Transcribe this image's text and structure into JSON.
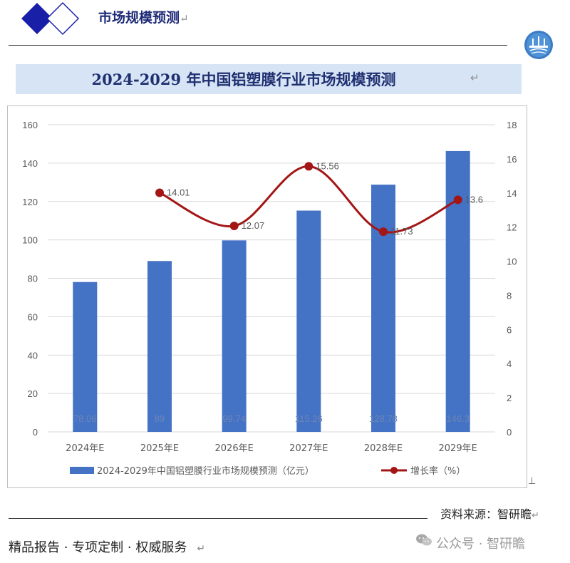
{
  "header": {
    "title": "市场规模预测",
    "para_mark": "↵"
  },
  "banner": {
    "title": "2024-2029 年中国铝塑膜行业市场规模预测",
    "para_mark": "↵"
  },
  "chart_data": {
    "type": "bar+line",
    "categories": [
      "2024年E",
      "2025年E",
      "2026年E",
      "2027年E",
      "2028年E",
      "2029年E"
    ],
    "series": [
      {
        "name": "2024-2029年中国铝塑膜行业市场规模预测（亿元）",
        "type": "bar",
        "axis": "left",
        "color": "#4472c4",
        "values": [
          78.06,
          89,
          99.74,
          115.26,
          128.78,
          146.3
        ],
        "labels": [
          "78.06",
          "89",
          "99.74",
          "115.26",
          "128.78",
          "146.3"
        ]
      },
      {
        "name": "增长率（%）",
        "type": "line",
        "axis": "right",
        "color": "#a31616",
        "values": [
          null,
          14.01,
          12.07,
          15.56,
          11.73,
          13.6
        ],
        "labels": [
          "",
          "14.01",
          "12.07",
          "15.56",
          "11.73",
          "13.6"
        ]
      }
    ],
    "y_left": {
      "min": 0,
      "max": 160,
      "step": 20,
      "ticks": [
        "0",
        "20",
        "40",
        "60",
        "80",
        "100",
        "120",
        "140",
        "160"
      ]
    },
    "y_right": {
      "min": 0,
      "max": 18,
      "step": 2,
      "ticks": [
        "0",
        "2",
        "4",
        "6",
        "8",
        "10",
        "12",
        "14",
        "16",
        "18"
      ]
    },
    "grid": true,
    "legend_position": "bottom"
  },
  "footer": {
    "source": "资料来源：智研瞻",
    "para_mark": "↵",
    "slogan": "精品报告 ·  专项定制 · 权威服务",
    "watermark": "公众号 · 智研瞻",
    "end_mark": "↵"
  },
  "colors": {
    "brand_navy": "#1e2a78",
    "banner_bg": "#d6e4f5",
    "bar": "#4472c4",
    "line": "#a31616"
  }
}
